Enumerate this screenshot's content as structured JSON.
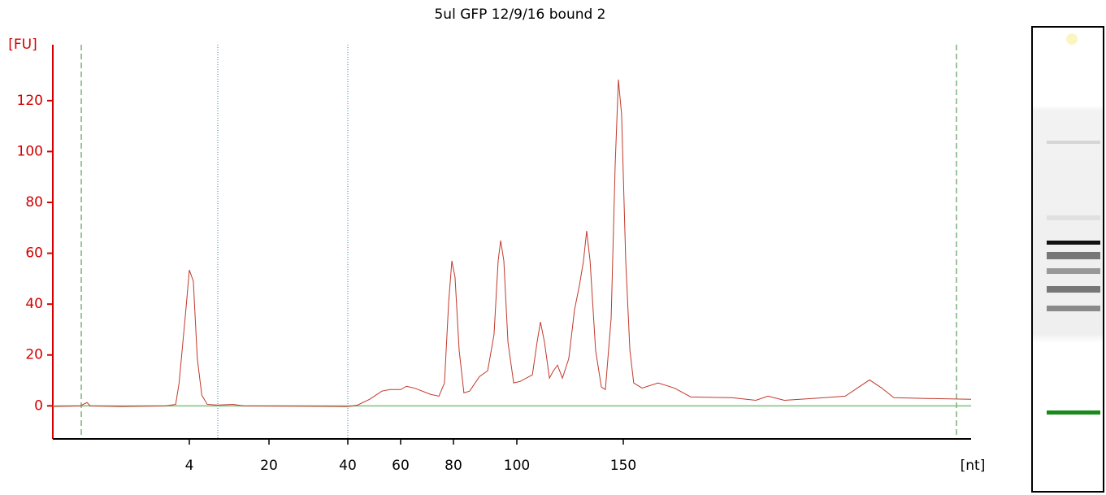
{
  "chart_data": {
    "type": "line",
    "title": "5ul GFP 12/9/16 bound 2",
    "y_label": "[FU]",
    "x_label": "[nt]",
    "xlim": [
      0,
      250
    ],
    "xticks": [
      4,
      20,
      40,
      60,
      80,
      100,
      150
    ],
    "ylim": [
      -13,
      142
    ],
    "yticks": [
      0,
      20,
      40,
      60,
      80,
      100,
      120
    ],
    "baseline_color": "#7fbf7f",
    "series": [
      {
        "color": "#c0392b",
        "x": [
          0,
          0.8,
          1.0,
          1.1,
          2.0,
          3.3,
          3.6,
          3.7,
          3.9,
          4,
          4.8,
          5.6,
          6.5,
          7.6,
          9.7,
          12.8,
          14.9,
          40,
          43.7,
          48.3,
          52.9,
          56,
          60,
          62.2,
          65.2,
          71.4,
          74.5,
          76.6,
          78.2,
          79.4,
          80.5,
          81.8,
          83.3,
          85.1,
          88.2,
          90.8,
          92.8,
          94.1,
          94.9,
          95.9,
          97.2,
          99,
          101.5,
          107.3,
          109.5,
          111.1,
          113,
          115.3,
          117.2,
          119.1,
          121.4,
          124.4,
          127.1,
          129.4,
          131.3,
          132.8,
          134.4,
          137,
          139.7,
          141.6,
          144.3,
          146.2,
          147.7,
          149.2,
          150.7,
          151.9,
          153,
          155.4,
          160,
          164.7,
          169.4,
          181.1,
          188.1,
          191.6,
          196.3,
          204.4,
          213.8,
          220.8,
          224.3,
          227.8,
          237.1,
          250
        ],
        "values": [
          -0.3,
          0,
          1.3,
          0,
          -0.3,
          0,
          0.6,
          9,
          38,
          53.4,
          49,
          18.6,
          4.2,
          0.6,
          0.3,
          0.6,
          0,
          -0.3,
          0.3,
          2.6,
          5.8,
          6.4,
          6.4,
          7.7,
          7,
          4.5,
          3.8,
          9,
          41,
          57,
          50.6,
          21.8,
          5.1,
          5.8,
          11.5,
          13.8,
          28,
          57,
          65,
          57,
          25,
          9,
          9.6,
          12.2,
          25,
          33,
          25,
          10.9,
          13.8,
          16,
          10.9,
          18.6,
          37.8,
          47.4,
          57,
          68.8,
          57,
          21.8,
          7.4,
          6.4,
          34.6,
          95,
          128.3,
          114.6,
          57,
          21.8,
          9,
          7,
          9,
          7,
          3.5,
          3.2,
          2.2,
          3.8,
          2.2,
          2.9,
          3.8,
          10.2,
          7,
          3.2,
          2.9,
          2.6
        ]
      }
    ]
  }
}
